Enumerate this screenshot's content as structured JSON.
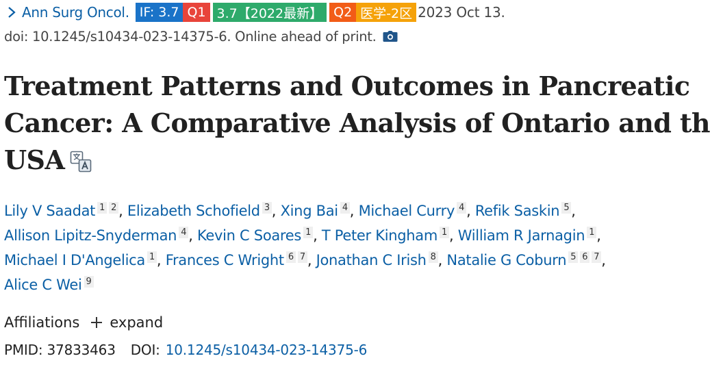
{
  "citation": {
    "journal": "Ann Surg Oncol.",
    "badges": {
      "impact_factor": "IF: 3.7",
      "jcr_quartile": "Q1",
      "cas_score": "3.7【2022最新】",
      "cas_quartile": "Q2",
      "zone": "医学-2区"
    },
    "date": "2023 Oct 13.",
    "doi_line": "doi: 10.1245/s10434-023-14375-6. Online ahead of print."
  },
  "title": {
    "lines": [
      "Treatment Patterns and Outcomes in Pancreatic",
      "Cancer: A Comparative Analysis of Ontario and the",
      "USA"
    ]
  },
  "authors": [
    {
      "name": "Lily V Saadat",
      "affs": [
        "1",
        "2"
      ]
    },
    {
      "name": "Elizabeth Schofield",
      "affs": [
        "3"
      ]
    },
    {
      "name": "Xing Bai",
      "affs": [
        "4"
      ]
    },
    {
      "name": "Michael Curry",
      "affs": [
        "4"
      ]
    },
    {
      "name": "Refik Saskin",
      "affs": [
        "5"
      ]
    },
    {
      "name": "Allison Lipitz-Snyderman",
      "affs": [
        "4"
      ]
    },
    {
      "name": "Kevin C Soares",
      "affs": [
        "1"
      ]
    },
    {
      "name": "T Peter Kingham",
      "affs": [
        "1"
      ]
    },
    {
      "name": "William R Jarnagin",
      "affs": [
        "1"
      ]
    },
    {
      "name": "Michael I D'Angelica",
      "affs": [
        "1"
      ]
    },
    {
      "name": "Frances C Wright",
      "affs": [
        "6",
        "7"
      ]
    },
    {
      "name": "Jonathan C Irish",
      "affs": [
        "8"
      ]
    },
    {
      "name": "Natalie G Coburn",
      "affs": [
        "5",
        "6",
        "7"
      ]
    },
    {
      "name": "Alice C Wei",
      "affs": [
        "9"
      ]
    }
  ],
  "affiliations": {
    "label": "Affiliations",
    "expand_label": "expand"
  },
  "identifiers": {
    "pmid_label": "PMID:",
    "pmid": "37833463",
    "doi_label": "DOI:",
    "doi": "10.1245/s10434-023-14375-6"
  },
  "icons": {
    "journal_toggle": "chevron-right-icon",
    "snapshot": "camera-icon",
    "translate": "translate-icon",
    "expand": "plus-icon"
  },
  "colors": {
    "link": "#0b5fa5",
    "badge_if": "#1a73c8",
    "badge_q1": "#e8443a",
    "badge_cas": "#2eaa6b",
    "badge_q2": "#f25c17",
    "badge_zone": "#f5a20a"
  }
}
